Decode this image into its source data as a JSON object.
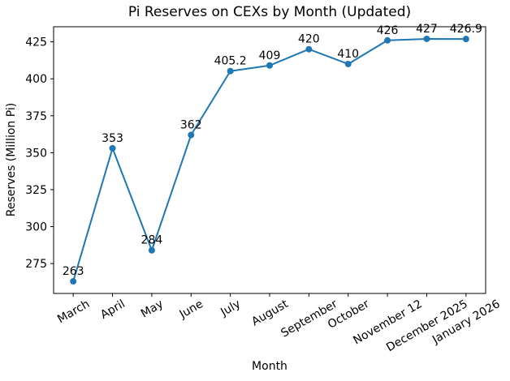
{
  "chart_data": {
    "type": "line",
    "title": "Pi Reserves on CEXs by Month (Updated)",
    "xlabel": "Month",
    "ylabel": "Reserves (Million Pi)",
    "categories": [
      "March",
      "April",
      "May",
      "June",
      "July",
      "August",
      "September",
      "October",
      "November 12",
      "December 2025",
      "January 2026"
    ],
    "values": [
      263,
      353,
      284,
      362,
      405.2,
      409,
      420,
      410,
      426,
      427,
      426.9
    ],
    "point_labels": [
      "263",
      "353",
      "284",
      "362",
      "405.2",
      "409",
      "420",
      "410",
      "426",
      "427",
      "426.9"
    ],
    "yticks": [
      275,
      300,
      325,
      350,
      375,
      400,
      425
    ],
    "ylim": [
      254.8,
      435.2
    ],
    "line_color": "#1f77b4",
    "marker": "circle",
    "grid": false,
    "legend": "none",
    "x_tick_rotation_deg": 30
  }
}
